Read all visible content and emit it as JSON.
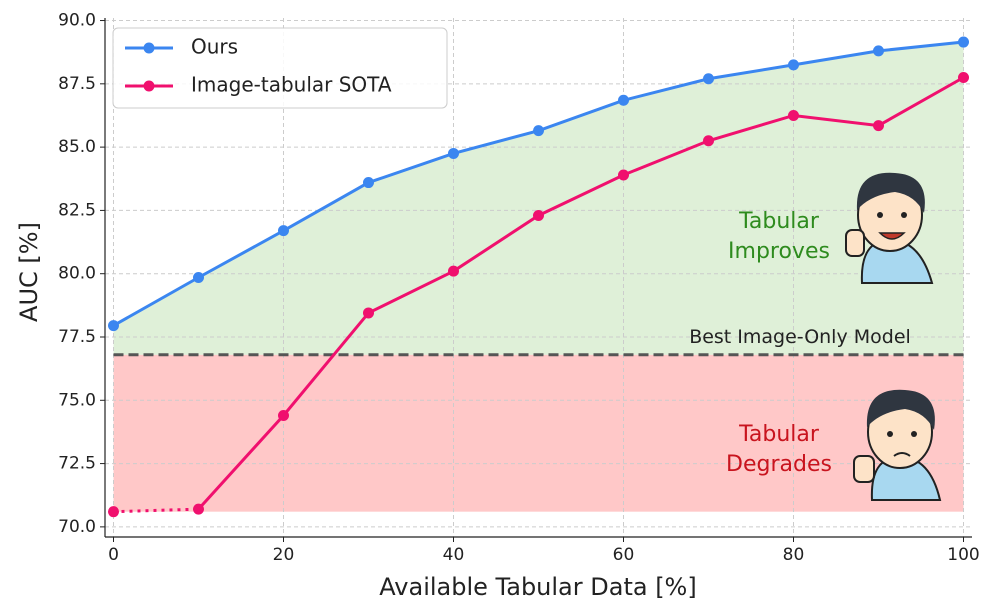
{
  "chart_data": {
    "type": "line",
    "x_label": "Available Tabular Data [%]",
    "y_label": "AUC [%]",
    "x": [
      0,
      10,
      20,
      30,
      40,
      50,
      60,
      70,
      80,
      90,
      100
    ],
    "series": [
      {
        "name": "Ours",
        "color": "#3b86f0",
        "values": [
          77.95,
          79.85,
          81.7,
          83.6,
          84.75,
          85.65,
          86.85,
          87.7,
          88.25,
          88.8,
          89.15
        ]
      },
      {
        "name": "Image-tabular SOTA",
        "color": "#f0106e",
        "values": [
          70.6,
          70.7,
          74.4,
          78.45,
          80.1,
          82.3,
          83.9,
          85.25,
          86.25,
          85.85,
          87.75
        ],
        "dotted_first_segment": true
      }
    ],
    "baseline": {
      "label": "Best Image-Only Model",
      "value": 76.8,
      "color": "#555555"
    },
    "regions": {
      "above_color": "#dff0d8",
      "below_color": "#ffc8c8"
    },
    "annotations": [
      {
        "lines": [
          "Tabular",
          "Improves"
        ],
        "color": "#2e8b1e"
      },
      {
        "lines": [
          "Tabular",
          "Degrades"
        ],
        "color": "#c8141e"
      }
    ],
    "xlim": [
      -1,
      101
    ],
    "ylim": [
      69.6,
      90.1
    ],
    "xticks": [
      0,
      20,
      40,
      60,
      80,
      100
    ],
    "yticks": [
      {
        "value": 70,
        "label": "70.0"
      },
      72.5,
      {
        "value": 75,
        "label": "75.0"
      },
      77.5,
      {
        "value": 80,
        "label": "80.0"
      },
      82.5,
      {
        "value": 85,
        "label": "85.0"
      },
      87.5,
      {
        "value": 90,
        "label": "90.0"
      }
    ],
    "grid": true,
    "legend": "upper left"
  }
}
